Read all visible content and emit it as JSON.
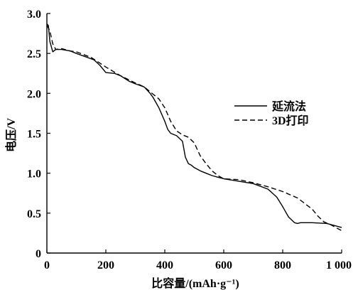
{
  "chart_data": {
    "type": "line",
    "xlabel": "比容量/(mAh·g⁻¹)",
    "ylabel": "电压/V",
    "xlim": [
      0,
      1000
    ],
    "ylim": [
      0,
      3.0
    ],
    "x_ticks": [
      {
        "value": 0,
        "label": "0"
      },
      {
        "value": 200,
        "label": "200"
      },
      {
        "value": 400,
        "label": "400"
      },
      {
        "value": 600,
        "label": "600"
      },
      {
        "value": 800,
        "label": "800"
      },
      {
        "value": 1000,
        "label": "1 000"
      }
    ],
    "y_ticks": [
      {
        "value": 0,
        "label": "0"
      },
      {
        "value": 0.5,
        "label": "0.5"
      },
      {
        "value": 1.0,
        "label": "1.0"
      },
      {
        "value": 1.5,
        "label": "1.5"
      },
      {
        "value": 2.0,
        "label": "2.0"
      },
      {
        "value": 2.5,
        "label": "2.5"
      },
      {
        "value": 3.0,
        "label": "3.0"
      }
    ],
    "grid": false,
    "legend_position": "right",
    "series": [
      {
        "name": "延流法",
        "style": "solid",
        "color": "#000000",
        "x": [
          0,
          5,
          10,
          20,
          30,
          50,
          80,
          100,
          130,
          160,
          180,
          200,
          230,
          250,
          280,
          300,
          330,
          350,
          360,
          380,
          400,
          410,
          420,
          440,
          460,
          470,
          480,
          490,
          500,
          520,
          540,
          560,
          580,
          600,
          650,
          700,
          750,
          780,
          800,
          820,
          840,
          850,
          860,
          900,
          950,
          1000
        ],
        "y": [
          2.87,
          2.85,
          2.65,
          2.52,
          2.55,
          2.55,
          2.53,
          2.5,
          2.46,
          2.42,
          2.35,
          2.26,
          2.25,
          2.22,
          2.15,
          2.12,
          2.08,
          2.0,
          1.95,
          1.82,
          1.65,
          1.55,
          1.5,
          1.47,
          1.4,
          1.2,
          1.12,
          1.1,
          1.07,
          1.03,
          1.0,
          0.97,
          0.95,
          0.93,
          0.9,
          0.87,
          0.8,
          0.7,
          0.58,
          0.45,
          0.38,
          0.37,
          0.38,
          0.38,
          0.37,
          0.32
        ]
      },
      {
        "name": "3D打印",
        "style": "dashed",
        "color": "#000000",
        "x": [
          0,
          5,
          10,
          20,
          30,
          50,
          80,
          100,
          150,
          200,
          250,
          300,
          330,
          350,
          380,
          400,
          420,
          440,
          460,
          480,
          500,
          510,
          520,
          540,
          560,
          580,
          600,
          650,
          700,
          750,
          800,
          850,
          900,
          920,
          940,
          960,
          1000
        ],
        "y": [
          2.85,
          2.82,
          2.78,
          2.62,
          2.55,
          2.56,
          2.53,
          2.52,
          2.45,
          2.33,
          2.22,
          2.13,
          2.08,
          2.02,
          1.93,
          1.82,
          1.65,
          1.53,
          1.48,
          1.45,
          1.38,
          1.3,
          1.22,
          1.12,
          1.03,
          0.97,
          0.93,
          0.92,
          0.88,
          0.83,
          0.77,
          0.69,
          0.55,
          0.46,
          0.39,
          0.36,
          0.28
        ]
      }
    ]
  }
}
